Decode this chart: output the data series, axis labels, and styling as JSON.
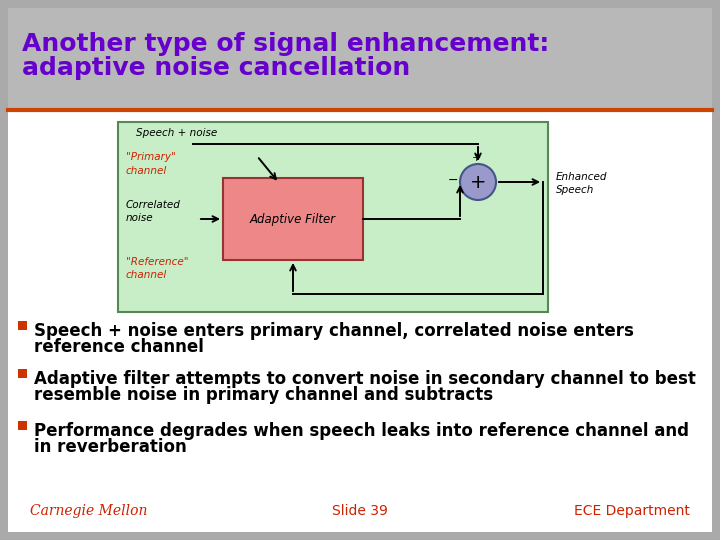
{
  "title_line1": "Another type of signal enhancement:",
  "title_line2": "adaptive noise cancellation",
  "title_color": "#6600cc",
  "bg_color": "#aaaaaa",
  "title_bg_color": "#b8b8b8",
  "slide_bg": "#ffffff",
  "title_fontsize": 18,
  "separator_color": "#cc4400",
  "diagram_bg": "#c8eec8",
  "diagram_border": "#558855",
  "filter_box_color": "#ee8888",
  "filter_box_border": "#993333",
  "filter_text": "Adaptive Filter",
  "summing_circle_color": "#9999cc",
  "summing_circle_border": "#445588",
  "label_primary_color": "#cc2200",
  "label_reference_color": "#cc2200",
  "bullet_color": "#cc3300",
  "bullet1": "Speech + noise enters primary channel, correlated noise enters\nreference channel",
  "bullet2": "Adaptive filter attempts to convert noise in secondary channel to best\nresemble noise in primary channel and subtracts",
  "bullet3": "Performance degrades when speech leaks into reference channel and\nin reverberation",
  "bullet_fontsize": 12,
  "footer_slide": "Slide 39",
  "footer_dept": "ECE Department",
  "footer_color": "#cc2200"
}
